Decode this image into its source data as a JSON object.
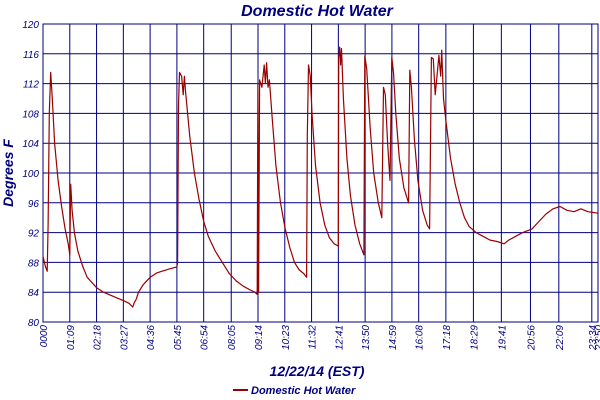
{
  "chart_data": {
    "type": "line",
    "title": "Domestic Hot Water",
    "xlabel": "12/22/14 (EST)",
    "ylabel": "Degrees F",
    "ylim": [
      80,
      120
    ],
    "yticks": [
      80,
      84,
      88,
      92,
      96,
      100,
      104,
      108,
      112,
      116,
      120
    ],
    "xlim_hours": [
      0,
      23.833
    ],
    "x_tick_labels": [
      "0000",
      "01:09",
      "02:18",
      "03:27",
      "04:36",
      "05:45",
      "06:54",
      "08:05",
      "09:14",
      "10:23",
      "11:32",
      "12:41",
      "13:50",
      "14:59",
      "16:08",
      "17:18",
      "18:29",
      "19:41",
      "20:56",
      "22:09",
      "23:34",
      "23:50"
    ],
    "x_tick_hours": [
      0,
      1.15,
      2.3,
      3.45,
      4.6,
      5.75,
      6.9,
      8.083,
      9.233,
      10.383,
      11.533,
      12.683,
      13.833,
      14.983,
      16.133,
      17.3,
      18.483,
      19.683,
      20.933,
      22.15,
      23.567,
      23.833
    ],
    "grid": true,
    "legend": {
      "position": "bottom-center",
      "entries": [
        "Domestic Hot Water"
      ]
    },
    "series": [
      {
        "name": "Domestic Hot Water",
        "color": "#990000",
        "points": [
          [
            0.0,
            88.8
          ],
          [
            0.1,
            87.5
          ],
          [
            0.18,
            86.8
          ],
          [
            0.22,
            93.0
          ],
          [
            0.27,
            108.0
          ],
          [
            0.33,
            113.5
          ],
          [
            0.4,
            110.0
          ],
          [
            0.5,
            104.0
          ],
          [
            0.65,
            99.0
          ],
          [
            0.8,
            95.5
          ],
          [
            0.95,
            92.5
          ],
          [
            1.08,
            90.5
          ],
          [
            1.15,
            89.0
          ],
          [
            1.19,
            98.5
          ],
          [
            1.25,
            95.0
          ],
          [
            1.35,
            92.0
          ],
          [
            1.5,
            89.5
          ],
          [
            1.7,
            87.5
          ],
          [
            1.9,
            86.0
          ],
          [
            2.1,
            85.3
          ],
          [
            2.3,
            84.6
          ],
          [
            2.6,
            84.0
          ],
          [
            2.9,
            83.6
          ],
          [
            3.2,
            83.2
          ],
          [
            3.5,
            82.8
          ],
          [
            3.7,
            82.5
          ],
          [
            3.85,
            82.0
          ],
          [
            3.92,
            82.6
          ],
          [
            4.0,
            83.0
          ],
          [
            4.1,
            84.0
          ],
          [
            4.3,
            85.0
          ],
          [
            4.6,
            86.0
          ],
          [
            4.9,
            86.6
          ],
          [
            5.2,
            86.9
          ],
          [
            5.5,
            87.2
          ],
          [
            5.75,
            87.4
          ],
          [
            5.78,
            88.0
          ],
          [
            5.82,
            109.0
          ],
          [
            5.86,
            113.5
          ],
          [
            5.95,
            113.0
          ],
          [
            6.02,
            110.5
          ],
          [
            6.07,
            113.0
          ],
          [
            6.12,
            111.0
          ],
          [
            6.3,
            105.0
          ],
          [
            6.5,
            100.0
          ],
          [
            6.7,
            96.5
          ],
          [
            6.9,
            93.5
          ],
          [
            7.1,
            91.5
          ],
          [
            7.4,
            89.5
          ],
          [
            7.7,
            88.0
          ],
          [
            8.0,
            86.5
          ],
          [
            8.3,
            85.5
          ],
          [
            8.6,
            84.8
          ],
          [
            8.9,
            84.3
          ],
          [
            9.1,
            84.0
          ],
          [
            9.2,
            83.7
          ],
          [
            9.23,
            112.0
          ],
          [
            9.26,
            84.0
          ],
          [
            9.3,
            112.5
          ],
          [
            9.4,
            111.5
          ],
          [
            9.5,
            114.5
          ],
          [
            9.55,
            112.0
          ],
          [
            9.6,
            114.8
          ],
          [
            9.66,
            111.5
          ],
          [
            9.72,
            112.5
          ],
          [
            9.85,
            107.0
          ],
          [
            10.0,
            101.0
          ],
          [
            10.2,
            96.0
          ],
          [
            10.4,
            92.5
          ],
          [
            10.6,
            90.0
          ],
          [
            10.8,
            88.0
          ],
          [
            11.0,
            87.0
          ],
          [
            11.2,
            86.5
          ],
          [
            11.32,
            86.0
          ],
          [
            11.35,
            105.0
          ],
          [
            11.4,
            114.5
          ],
          [
            11.48,
            113.0
          ],
          [
            11.55,
            108.0
          ],
          [
            11.7,
            101.0
          ],
          [
            11.9,
            96.0
          ],
          [
            12.1,
            93.0
          ],
          [
            12.3,
            91.3
          ],
          [
            12.5,
            90.5
          ],
          [
            12.68,
            90.2
          ],
          [
            12.7,
            115.5
          ],
          [
            12.74,
            116.9
          ],
          [
            12.78,
            114.5
          ],
          [
            12.82,
            116.7
          ],
          [
            12.9,
            110.0
          ],
          [
            13.05,
            102.0
          ],
          [
            13.2,
            97.0
          ],
          [
            13.4,
            93.0
          ],
          [
            13.6,
            90.5
          ],
          [
            13.78,
            89.0
          ],
          [
            13.82,
            115.7
          ],
          [
            13.9,
            114.0
          ],
          [
            14.05,
            106.0
          ],
          [
            14.2,
            100.0
          ],
          [
            14.4,
            96.0
          ],
          [
            14.55,
            94.0
          ],
          [
            14.62,
            111.5
          ],
          [
            14.7,
            110.5
          ],
          [
            14.8,
            104.0
          ],
          [
            14.9,
            99.0
          ],
          [
            14.98,
            115.5
          ],
          [
            15.05,
            113.5
          ],
          [
            15.15,
            108.0
          ],
          [
            15.3,
            102.0
          ],
          [
            15.5,
            98.0
          ],
          [
            15.7,
            96.0
          ],
          [
            15.75,
            113.8
          ],
          [
            15.82,
            111.5
          ],
          [
            15.95,
            104.5
          ],
          [
            16.1,
            99.0
          ],
          [
            16.3,
            95.0
          ],
          [
            16.5,
            93.0
          ],
          [
            16.6,
            92.5
          ],
          [
            16.68,
            115.5
          ],
          [
            16.76,
            115.3
          ],
          [
            16.84,
            110.5
          ],
          [
            16.92,
            113.0
          ],
          [
            17.0,
            115.8
          ],
          [
            17.08,
            113.0
          ],
          [
            17.12,
            116.5
          ],
          [
            17.2,
            110.0
          ],
          [
            17.3,
            107.0
          ],
          [
            17.5,
            102.0
          ],
          [
            17.7,
            98.5
          ],
          [
            17.9,
            96.0
          ],
          [
            18.1,
            94.0
          ],
          [
            18.3,
            92.8
          ],
          [
            18.6,
            92.0
          ],
          [
            18.9,
            91.5
          ],
          [
            19.2,
            91.0
          ],
          [
            19.5,
            90.8
          ],
          [
            19.8,
            90.5
          ],
          [
            20.0,
            91.0
          ],
          [
            20.3,
            91.5
          ],
          [
            20.6,
            92.0
          ],
          [
            21.0,
            92.5
          ],
          [
            21.3,
            93.5
          ],
          [
            21.6,
            94.5
          ],
          [
            21.9,
            95.2
          ],
          [
            22.2,
            95.5
          ],
          [
            22.5,
            95.0
          ],
          [
            22.8,
            94.8
          ],
          [
            23.1,
            95.2
          ],
          [
            23.4,
            94.8
          ],
          [
            23.83,
            94.6
          ]
        ]
      }
    ]
  }
}
